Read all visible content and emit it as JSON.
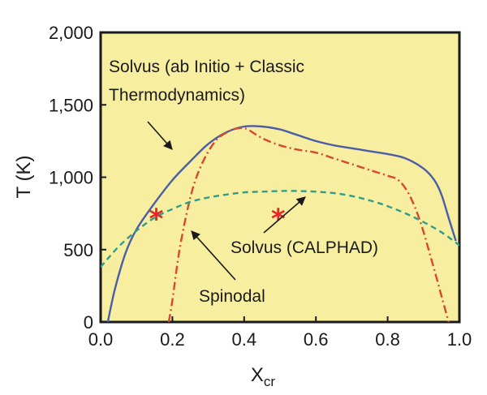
{
  "chart_data": {
    "type": "line",
    "title": "",
    "xlabel": "X",
    "xlabel_sub": "cr",
    "ylabel": "T (K)",
    "xlim": [
      0.0,
      1.0
    ],
    "ylim": [
      0,
      2000
    ],
    "x_ticks": [
      "0.0",
      "0.2",
      "0.4",
      "0.6",
      "0.8",
      "1.0"
    ],
    "y_ticks": [
      "0",
      "500",
      "1,000",
      "1,500",
      "2,000"
    ],
    "grid": false,
    "background_color": "#f7ef9f",
    "series": [
      {
        "color": "#4a5ea8",
        "style": "solid",
        "x": [
          0.02,
          0.04,
          0.07,
          0.1,
          0.15,
          0.2,
          0.25,
          0.3,
          0.35,
          0.4,
          0.45,
          0.5,
          0.55,
          0.6,
          0.65,
          0.7,
          0.75,
          0.8,
          0.85,
          0.9,
          0.93,
          0.95,
          0.97,
          0.99
        ],
        "y": [
          0,
          230,
          480,
          640,
          820,
          980,
          1110,
          1230,
          1310,
          1350,
          1350,
          1330,
          1290,
          1250,
          1220,
          1200,
          1180,
          1160,
          1130,
          1060,
          980,
          880,
          720,
          560
        ]
      },
      {
        "color": "#d9472f",
        "style": "dashdot",
        "x": [
          0.19,
          0.2,
          0.22,
          0.25,
          0.28,
          0.32,
          0.36,
          0.39,
          0.41,
          0.45,
          0.5,
          0.55,
          0.6,
          0.65,
          0.7,
          0.75,
          0.8,
          0.83,
          0.86,
          0.89,
          0.92,
          0.95,
          0.97
        ],
        "y": [
          0,
          150,
          500,
          860,
          1080,
          1250,
          1320,
          1340,
          1330,
          1270,
          1220,
          1190,
          1170,
          1130,
          1090,
          1050,
          1010,
          980,
          880,
          700,
          450,
          180,
          0
        ]
      },
      {
        "color": "#2e9e8a",
        "style": "dashed",
        "x": [
          0.0,
          0.05,
          0.1,
          0.15,
          0.2,
          0.25,
          0.3,
          0.35,
          0.4,
          0.45,
          0.5,
          0.55,
          0.6,
          0.65,
          0.7,
          0.75,
          0.8,
          0.85,
          0.9,
          0.95,
          1.0
        ],
        "y": [
          380,
          520,
          630,
          720,
          780,
          830,
          860,
          880,
          895,
          900,
          905,
          905,
          900,
          890,
          870,
          840,
          800,
          750,
          690,
          620,
          530
        ]
      }
    ],
    "markers": [
      {
        "x": 0.155,
        "y": 760,
        "symbol": "*",
        "color": "#e8262a"
      },
      {
        "x": 0.495,
        "y": 760,
        "symbol": "*",
        "color": "#e8262a"
      }
    ],
    "annotations": [
      {
        "lines": [
          "Solvus (ab Initio + Classic",
          "Thermodynamics)"
        ]
      },
      {
        "lines": [
          "Solvus (CALPHAD)"
        ]
      },
      {
        "lines": [
          "Spinodal"
        ]
      }
    ]
  }
}
